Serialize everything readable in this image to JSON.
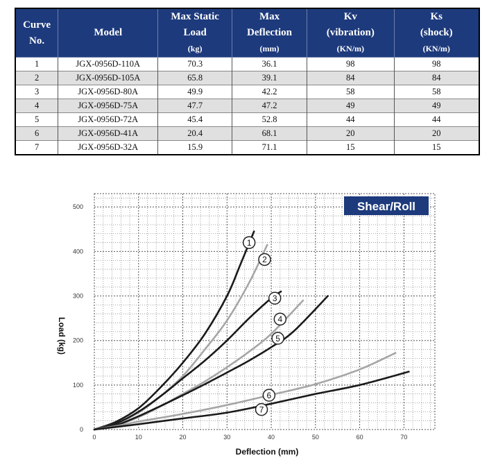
{
  "table": {
    "headers": [
      {
        "line1": "Curve",
        "line2": "No.",
        "unit": ""
      },
      {
        "line1": "Model",
        "line2": "",
        "unit": ""
      },
      {
        "line1": "Max Static",
        "line2": "Load",
        "unit": "(kg)"
      },
      {
        "line1": "Max",
        "line2": "Deflection",
        "unit": "(mm)"
      },
      {
        "line1": "Kv",
        "line2": "(vibration)",
        "unit": "(KN/m)"
      },
      {
        "line1": "Ks",
        "line2": "(shock)",
        "unit": "(KN/m)"
      }
    ],
    "rows": [
      {
        "curve": "1",
        "model": "JGX-0956D-110A",
        "load": "70.3",
        "deflection": "36.1",
        "kv": "98",
        "ks": "98"
      },
      {
        "curve": "2",
        "model": "JGX-0956D-105A",
        "load": "65.8",
        "deflection": "39.1",
        "kv": "84",
        "ks": "84"
      },
      {
        "curve": "3",
        "model": "JGX-0956D-80A",
        "load": "49.9",
        "deflection": "42.2",
        "kv": "58",
        "ks": "58"
      },
      {
        "curve": "4",
        "model": "JGX-0956D-75A",
        "load": "47.7",
        "deflection": "47.2",
        "kv": "49",
        "ks": "49"
      },
      {
        "curve": "5",
        "model": "JGX-0956D-72A",
        "load": "45.4",
        "deflection": "52.8",
        "kv": "44",
        "ks": "44"
      },
      {
        "curve": "6",
        "model": "JGX-0956D-41A",
        "load": "20.4",
        "deflection": "68.1",
        "kv": "20",
        "ks": "20"
      },
      {
        "curve": "7",
        "model": "JGX-0956D-32A",
        "load": "15.9",
        "deflection": "71.1",
        "kv": "15",
        "ks": "15"
      }
    ]
  },
  "chart_data": {
    "type": "line",
    "badge": "Shear/Roll",
    "xlabel": "Deflection (mm)",
    "ylabel": "Load (kg)",
    "xlim": [
      0,
      77
    ],
    "ylim": [
      0,
      530
    ],
    "xticks": [
      0,
      10,
      20,
      30,
      40,
      50,
      60,
      70
    ],
    "yticks": [
      0,
      100,
      200,
      300,
      400,
      500
    ],
    "grid": true,
    "colors": {
      "dark": "#1a1a1a",
      "light": "#a6a6a6",
      "badge": "#1d3a7c"
    },
    "series": [
      {
        "name": "1",
        "color": "dark",
        "x": [
          0,
          5,
          10,
          15,
          20,
          25,
          30,
          33,
          36.1
        ],
        "y": [
          0,
          18,
          48,
          95,
          150,
          215,
          300,
          370,
          445
        ],
        "marker": [
          35,
          420
        ]
      },
      {
        "name": "2",
        "color": "light",
        "x": [
          0,
          5,
          10,
          15,
          20,
          25,
          30,
          35,
          39.1
        ],
        "y": [
          0,
          14,
          38,
          75,
          120,
          180,
          245,
          330,
          415
        ],
        "marker": [
          38.5,
          382
        ]
      },
      {
        "name": "3",
        "color": "dark",
        "x": [
          0,
          5,
          10,
          15,
          20,
          25,
          30,
          35,
          40,
          42.2
        ],
        "y": [
          0,
          14,
          40,
          75,
          115,
          155,
          200,
          250,
          295,
          310
        ],
        "marker": [
          40.8,
          295
        ]
      },
      {
        "name": "4",
        "color": "light",
        "x": [
          0,
          5,
          10,
          15,
          20,
          25,
          30,
          35,
          40,
          47.2
        ],
        "y": [
          0,
          10,
          28,
          52,
          80,
          108,
          140,
          175,
          215,
          290
        ],
        "marker": [
          42,
          248
        ]
      },
      {
        "name": "5",
        "color": "dark",
        "x": [
          0,
          5,
          10,
          15,
          20,
          25,
          30,
          35,
          40,
          45,
          52.8
        ],
        "y": [
          0,
          10,
          30,
          53,
          77,
          102,
          128,
          155,
          185,
          220,
          300
        ],
        "marker": [
          41.5,
          205
        ]
      },
      {
        "name": "6",
        "color": "light",
        "x": [
          0,
          5,
          10,
          20,
          30,
          40,
          50,
          60,
          68.1
        ],
        "y": [
          0,
          8,
          18,
          35,
          55,
          78,
          102,
          135,
          172
        ],
        "marker": [
          39.5,
          77
        ]
      },
      {
        "name": "7",
        "color": "dark",
        "x": [
          0,
          5,
          10,
          20,
          30,
          40,
          50,
          60,
          71.1
        ],
        "y": [
          0,
          6,
          12,
          25,
          38,
          58,
          80,
          100,
          130
        ],
        "marker": [
          37.8,
          45
        ]
      }
    ]
  }
}
